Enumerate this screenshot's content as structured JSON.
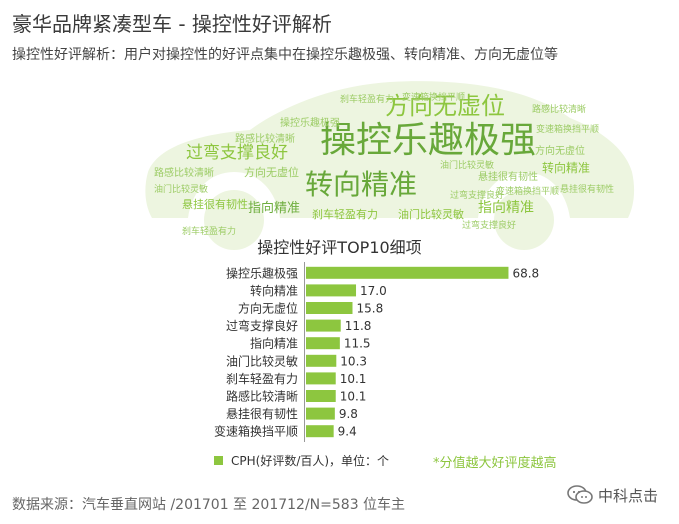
{
  "header": {
    "title": "豪华品牌紧凑型车 - 操控性好评解析",
    "subtitle": "操控性好评解析：用户对操控性的好评点集中在操控乐趣极强、转向精准、方向无虚位等"
  },
  "wordcloud": {
    "words": [
      {
        "text": "操控乐趣极强",
        "weight": 68.8
      },
      {
        "text": "转向精准",
        "weight": 17.0
      },
      {
        "text": "方向无虚位",
        "weight": 15.8
      },
      {
        "text": "过弯支撑良好",
        "weight": 11.8
      },
      {
        "text": "指向精准",
        "weight": 11.5
      },
      {
        "text": "油门比较灵敏",
        "weight": 10.3
      },
      {
        "text": "刹车轻盈有力",
        "weight": 10.1
      },
      {
        "text": "路感比较清晰",
        "weight": 10.1
      },
      {
        "text": "悬挂很有韧性",
        "weight": 9.8
      },
      {
        "text": "变速箱换挡平顺",
        "weight": 9.4
      }
    ]
  },
  "chart_data": {
    "type": "bar",
    "orientation": "horizontal",
    "title": "操控性好评TOP10细项",
    "categories": [
      "操控乐趣极强",
      "转向精准",
      "方向无虚位",
      "过弯支撑良好",
      "指向精准",
      "油门比较灵敏",
      "刹车轻盈有力",
      "路感比较清晰",
      "悬挂很有韧性",
      "变速箱换挡平顺"
    ],
    "series": [
      {
        "name": "CPH(好评数/百人)，单位：个",
        "values": [
          68.8,
          17.0,
          15.8,
          11.8,
          11.5,
          10.3,
          10.1,
          10.1,
          9.8,
          9.4
        ]
      }
    ],
    "xlim": [
      0,
      70
    ],
    "grid": false,
    "legend": "bottom-left",
    "bar_color": "#8dc63f",
    "annotation": "*分值越大好评度越高"
  },
  "footer": {
    "source": "数据来源：汽车垂直网站 /201701 至 201712/N=583 位车主",
    "watermark": "中科点击"
  }
}
